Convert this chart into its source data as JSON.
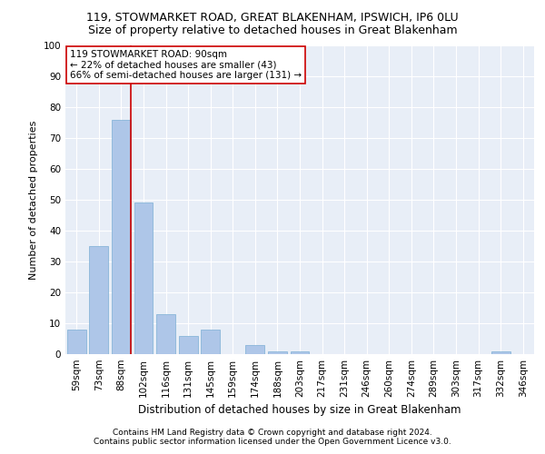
{
  "title1": "119, STOWMARKET ROAD, GREAT BLAKENHAM, IPSWICH, IP6 0LU",
  "title2": "Size of property relative to detached houses in Great Blakenham",
  "xlabel": "Distribution of detached houses by size in Great Blakenham",
  "ylabel": "Number of detached properties",
  "footnote1": "Contains HM Land Registry data © Crown copyright and database right 2024.",
  "footnote2": "Contains public sector information licensed under the Open Government Licence v3.0.",
  "categories": [
    "59sqm",
    "73sqm",
    "88sqm",
    "102sqm",
    "116sqm",
    "131sqm",
    "145sqm",
    "159sqm",
    "174sqm",
    "188sqm",
    "203sqm",
    "217sqm",
    "231sqm",
    "246sqm",
    "260sqm",
    "274sqm",
    "289sqm",
    "303sqm",
    "317sqm",
    "332sqm",
    "346sqm"
  ],
  "values": [
    8,
    35,
    76,
    49,
    13,
    6,
    8,
    0,
    3,
    1,
    1,
    0,
    0,
    0,
    0,
    0,
    0,
    0,
    0,
    1,
    0
  ],
  "bar_color": "#aec6e8",
  "bar_edge_color": "#7bafd4",
  "property_line_color": "#cc0000",
  "annotation_text": "119 STOWMARKET ROAD: 90sqm\n← 22% of detached houses are smaller (43)\n66% of semi-detached houses are larger (131) →",
  "annotation_box_color": "#ffffff",
  "annotation_box_edge": "#cc0000",
  "ylim": [
    0,
    100
  ],
  "yticks": [
    0,
    10,
    20,
    30,
    40,
    50,
    60,
    70,
    80,
    90,
    100
  ],
  "background_color": "#e8eef7",
  "grid_color": "#ffffff",
  "title1_fontsize": 9,
  "title2_fontsize": 9,
  "xlabel_fontsize": 8.5,
  "ylabel_fontsize": 8,
  "tick_fontsize": 7.5,
  "annotation_fontsize": 7.5,
  "footnote_fontsize": 6.5
}
